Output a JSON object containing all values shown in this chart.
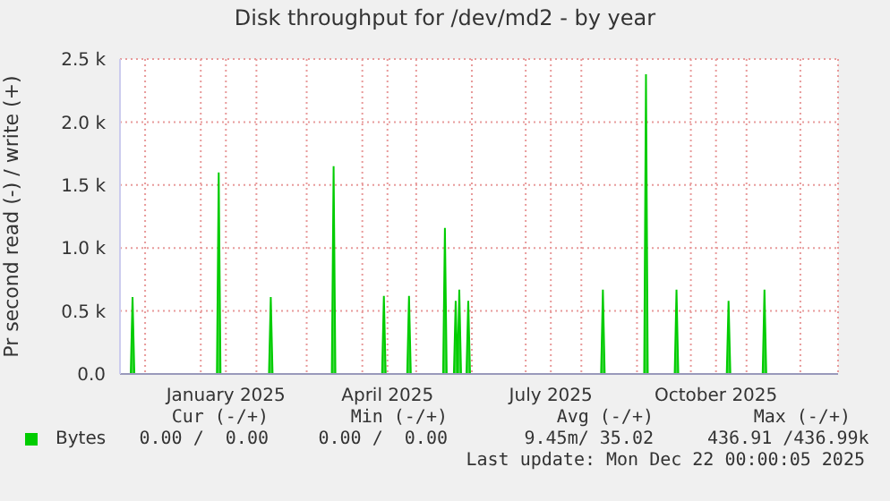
{
  "chart_data": {
    "type": "area",
    "title": "Disk throughput for /dev/md2 - by year",
    "ylabel": "Pr second read (-) / write (+)",
    "x": [
      "2024-11-17",
      "2024-11-23",
      "2024-11-24",
      "2024-11-25",
      "2025-01-10",
      "2025-01-11",
      "2025-01-12",
      "2025-02-08",
      "2025-02-09",
      "2025-02-10",
      "2025-03-15",
      "2025-03-16",
      "2025-03-17",
      "2025-04-12",
      "2025-04-13",
      "2025-04-14",
      "2025-04-26",
      "2025-04-27",
      "2025-04-28",
      "2025-05-16",
      "2025-05-17",
      "2025-05-18",
      "2025-05-22",
      "2025-05-23",
      "2025-05-24",
      "2025-05-25",
      "2025-05-26",
      "2025-05-29",
      "2025-05-30",
      "2025-05-31",
      "2025-08-12",
      "2025-08-13",
      "2025-08-14",
      "2025-09-05",
      "2025-09-06",
      "2025-09-07",
      "2025-09-22",
      "2025-09-23",
      "2025-09-24",
      "2025-10-21",
      "2025-10-22",
      "2025-10-23",
      "2025-11-10",
      "2025-11-11",
      "2025-11-12",
      "2025-12-22"
    ],
    "series": [
      {
        "name": "Bytes",
        "color": "#00cc00",
        "values": [
          0,
          0,
          610,
          0,
          0,
          1600,
          0,
          0,
          610,
          0,
          0,
          1650,
          0,
          0,
          620,
          0,
          0,
          620,
          0,
          0,
          1160,
          0,
          0,
          580,
          0,
          670,
          0,
          0,
          580,
          0,
          0,
          670,
          0,
          0,
          2380,
          0,
          0,
          670,
          0,
          0,
          580,
          0,
          0,
          670,
          0,
          0
        ]
      }
    ],
    "xlim": [
      "2024-11-17",
      "2025-12-22"
    ],
    "xticks": [
      {
        "value": "2024-12-01",
        "label": null
      },
      {
        "value": "2025-01-01",
        "label": null
      },
      {
        "value": "2025-01-15",
        "label": "January 2025"
      },
      {
        "value": "2025-02-01",
        "label": null
      },
      {
        "value": "2025-03-01",
        "label": null
      },
      {
        "value": "2025-04-01",
        "label": null
      },
      {
        "value": "2025-04-15",
        "label": "April 2025"
      },
      {
        "value": "2025-05-01",
        "label": null
      },
      {
        "value": "2025-06-01",
        "label": null
      },
      {
        "value": "2025-07-01",
        "label": null
      },
      {
        "value": "2025-07-15",
        "label": "July 2025"
      },
      {
        "value": "2025-08-01",
        "label": null
      },
      {
        "value": "2025-09-01",
        "label": null
      },
      {
        "value": "2025-10-01",
        "label": null
      },
      {
        "value": "2025-10-15",
        "label": "October 2025"
      },
      {
        "value": "2025-11-01",
        "label": null
      },
      {
        "value": "2025-12-01",
        "label": null
      }
    ],
    "ylim": [
      0,
      2500
    ],
    "yticks": [
      {
        "value": 0,
        "label": "0.0"
      },
      {
        "value": 500,
        "label": "0.5 k"
      },
      {
        "value": 1000,
        "label": "1.0 k"
      },
      {
        "value": 1500,
        "label": "1.5 k"
      },
      {
        "value": 2000,
        "label": "2.0 k"
      },
      {
        "value": 2500,
        "label": "2.5 k"
      }
    ],
    "grid": true,
    "legend": "bottom left",
    "annotations": [
      "Cur (-/+)",
      "Min (-/+)",
      "Avg (-/+)",
      "Max (-/+)",
      "0.00 /  0.00",
      "0.00 /  0.00",
      "9.45m/ 35.02",
      "436.91 /436.99k",
      "Last update: Mon Dec 22 00:00:05 2025"
    ]
  }
}
